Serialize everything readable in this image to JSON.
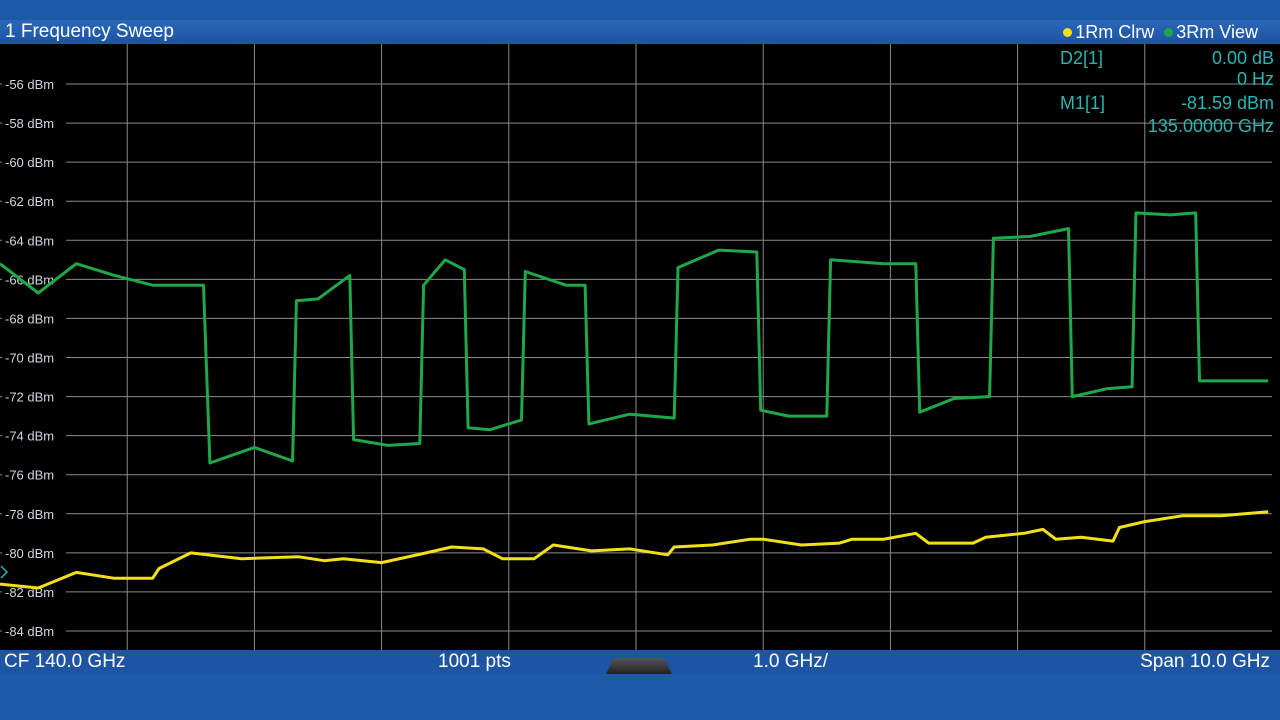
{
  "window": {
    "title": "1 Frequency Sweep",
    "traces": [
      {
        "label": "1Rm Clrw",
        "color": "#f2e11a"
      },
      {
        "label": "3Rm View",
        "color": "#1ea84a"
      }
    ]
  },
  "markers": [
    {
      "name": "D2[1]",
      "value": "0.00 dB",
      "freq": "0 Hz"
    },
    {
      "name": "M1[1]",
      "value": "-81.59 dBm",
      "freq": "135.00000 GHz"
    }
  ],
  "footer": {
    "cf": "CF 140.0 GHz",
    "points": "1001 pts",
    "division": "1.0 GHz/",
    "span": "Span 10.0 GHz"
  },
  "chart_data": {
    "type": "line",
    "xlim": [
      135.0,
      145.0
    ],
    "ylim": [
      -85,
      -55
    ],
    "yticks": [
      -56,
      -58,
      -60,
      -62,
      -64,
      -66,
      -68,
      -70,
      -72,
      -74,
      -76,
      -78,
      -80,
      -82,
      -84
    ],
    "ytick_labels": [
      "-56 dBm",
      "-58 dBm",
      "-60 dBm",
      "-62 dBm",
      "-64 dBm",
      "-66 dBm",
      "-68 dBm",
      "-70 dBm",
      "-72 dBm",
      "-74 dBm",
      "-76 dBm",
      "-78 dBm",
      "-80 dBm",
      "-82 dBm",
      "-84 dBm"
    ],
    "grid": true,
    "series": [
      {
        "color": "#1ea84a",
        "x": [
          135.0,
          135.3,
          135.6,
          135.9,
          136.2,
          136.6,
          136.65,
          137.0,
          137.3,
          137.33,
          137.5,
          137.75,
          137.78,
          138.05,
          138.3,
          138.33,
          138.5,
          138.65,
          138.68,
          138.85,
          139.1,
          139.13,
          139.45,
          139.6,
          139.63,
          139.95,
          140.3,
          140.33,
          140.65,
          140.95,
          140.98,
          141.2,
          141.5,
          141.53,
          141.95,
          142.2,
          142.23,
          142.5,
          142.78,
          142.81,
          143.1,
          143.4,
          143.43,
          143.7,
          143.9,
          143.93,
          144.2,
          144.4,
          144.43,
          144.8,
          144.97
        ],
        "values": [
          -65.2,
          -66.7,
          -65.2,
          -65.8,
          -66.3,
          -66.3,
          -75.4,
          -74.6,
          -75.3,
          -67.1,
          -67.0,
          -65.8,
          -74.2,
          -74.5,
          -74.4,
          -66.3,
          -65.0,
          -65.5,
          -73.6,
          -73.7,
          -73.2,
          -65.6,
          -66.3,
          -66.3,
          -73.4,
          -72.9,
          -73.1,
          -65.4,
          -64.5,
          -64.6,
          -72.7,
          -73.0,
          -73.0,
          -65.0,
          -65.2,
          -65.2,
          -72.8,
          -72.1,
          -72.0,
          -63.9,
          -63.8,
          -63.4,
          -72.0,
          -71.6,
          -71.5,
          -62.6,
          -62.7,
          -62.6,
          -71.2,
          -71.2,
          -71.2
        ]
      },
      {
        "color": "#f2e11a",
        "x": [
          135.0,
          135.3,
          135.6,
          135.9,
          136.2,
          136.25,
          136.5,
          136.9,
          137.35,
          137.55,
          137.7,
          138.0,
          138.35,
          138.55,
          138.8,
          138.95,
          139.2,
          139.35,
          139.65,
          139.95,
          140.25,
          140.3,
          140.6,
          140.9,
          141.0,
          141.3,
          141.6,
          141.7,
          141.95,
          142.2,
          142.3,
          142.65,
          142.75,
          143.05,
          143.2,
          143.3,
          143.5,
          143.75,
          143.8,
          144.0,
          144.3,
          144.6,
          144.97
        ],
        "values": [
          -81.6,
          -81.8,
          -81.0,
          -81.3,
          -81.3,
          -80.8,
          -80.0,
          -80.3,
          -80.2,
          -80.4,
          -80.3,
          -80.5,
          -80.0,
          -79.7,
          -79.8,
          -80.3,
          -80.3,
          -79.6,
          -79.9,
          -79.8,
          -80.1,
          -79.7,
          -79.6,
          -79.3,
          -79.3,
          -79.6,
          -79.5,
          -79.3,
          -79.3,
          -79.0,
          -79.5,
          -79.5,
          -79.2,
          -79.0,
          -78.8,
          -79.3,
          -79.2,
          -79.4,
          -78.7,
          -78.4,
          -78.1,
          -78.1,
          -77.9
        ]
      }
    ]
  }
}
